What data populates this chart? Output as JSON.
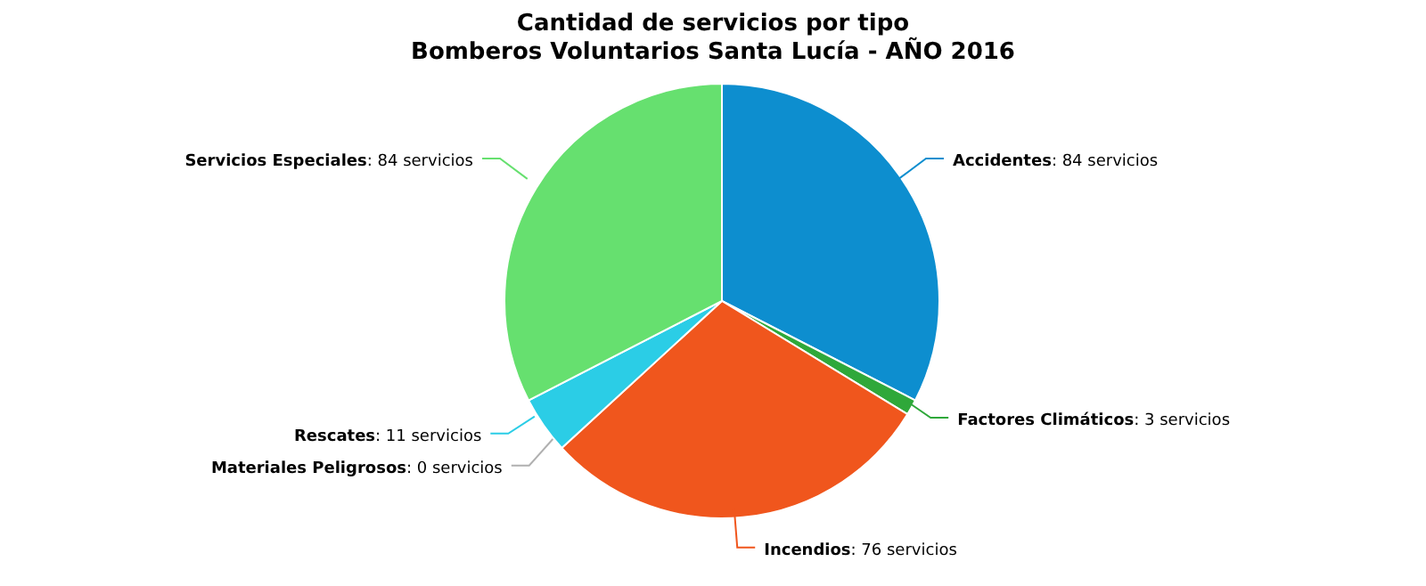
{
  "chart_data": {
    "type": "pie",
    "title": "Cantidad de servicios por tipo",
    "subtitle": "Bomberos Voluntarios Santa Lucía - AÑO 2016",
    "categories": [
      "Accidentes",
      "Factores Climáticos",
      "Incendios",
      "Materiales Peligrosos",
      "Rescates",
      "Servicios Especiales"
    ],
    "values": [
      84,
      3,
      76,
      0,
      11,
      84
    ],
    "colors": [
      "#0d8ecf",
      "#2fa83a",
      "#f0561d",
      "#b0b0b0",
      "#2bcde6",
      "#66e06f"
    ],
    "value_labels": [
      ": 84 servicios",
      ": 3 servicios",
      ": 76 servicios",
      ": 0 servicios",
      ": 11 servicios",
      ": 84 servicios"
    ]
  }
}
